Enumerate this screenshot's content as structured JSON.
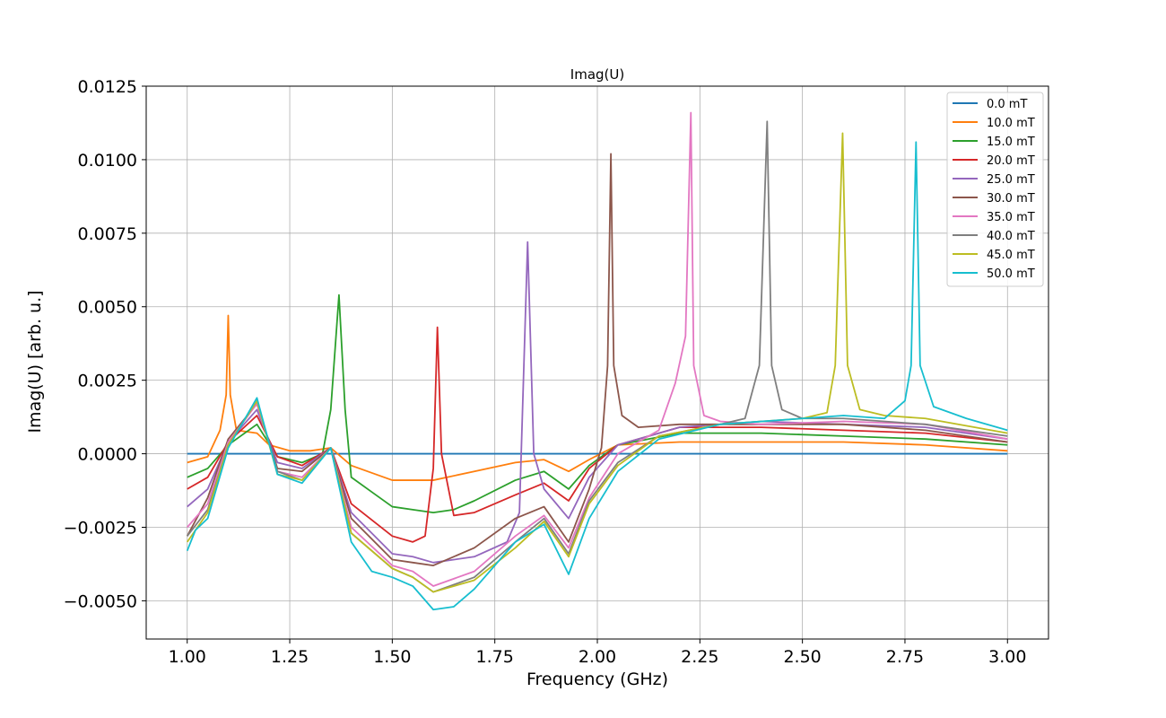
{
  "chart_data": {
    "type": "line",
    "title": "Imag(U)",
    "xlabel": "Frequency (GHz)",
    "ylabel": "Imag(U) [arb. u.]",
    "xlim": [
      0.9,
      3.1
    ],
    "ylim": [
      -0.0063,
      0.0125
    ],
    "xticks": [
      1.0,
      1.25,
      1.5,
      1.75,
      2.0,
      2.25,
      2.5,
      2.75,
      3.0
    ],
    "xtick_labels": [
      "1.00",
      "1.25",
      "1.50",
      "1.75",
      "2.00",
      "2.25",
      "2.50",
      "2.75",
      "3.00"
    ],
    "yticks": [
      -0.005,
      -0.0025,
      0.0,
      0.0025,
      0.005,
      0.0075,
      0.01,
      0.0125
    ],
    "ytick_labels": [
      "−0.0050",
      "−0.0025",
      "0.0000",
      "0.0025",
      "0.0050",
      "0.0075",
      "0.0100",
      "0.0125"
    ],
    "grid": true,
    "legend_position": "top-right",
    "series": [
      {
        "name": "0.0 mT",
        "color": "#1f77b4",
        "points": [
          [
            1.0,
            0.0
          ],
          [
            3.0,
            0.0
          ]
        ]
      },
      {
        "name": "10.0 mT",
        "color": "#ff7f0e",
        "points": [
          [
            1.0,
            -0.0003
          ],
          [
            1.05,
            -0.0001
          ],
          [
            1.08,
            0.0008
          ],
          [
            1.095,
            0.002
          ],
          [
            1.1,
            0.0047
          ],
          [
            1.105,
            0.002
          ],
          [
            1.12,
            0.0008
          ],
          [
            1.17,
            0.0007
          ],
          [
            1.2,
            0.0003
          ],
          [
            1.25,
            0.0001
          ],
          [
            1.3,
            0.0001
          ],
          [
            1.35,
            0.0002
          ],
          [
            1.4,
            -0.0004
          ],
          [
            1.5,
            -0.0009
          ],
          [
            1.55,
            -0.0009
          ],
          [
            1.6,
            -0.0009
          ],
          [
            1.7,
            -0.0006
          ],
          [
            1.8,
            -0.0003
          ],
          [
            1.87,
            -0.0002
          ],
          [
            1.93,
            -0.0006
          ],
          [
            1.98,
            -0.0002
          ],
          [
            2.05,
            0.0003
          ],
          [
            2.2,
            0.0004
          ],
          [
            2.4,
            0.0004
          ],
          [
            2.6,
            0.0004
          ],
          [
            2.8,
            0.0003
          ],
          [
            3.0,
            0.0001
          ]
        ]
      },
      {
        "name": "15.0 mT",
        "color": "#2ca02c",
        "points": [
          [
            1.0,
            -0.0008
          ],
          [
            1.05,
            -0.0005
          ],
          [
            1.1,
            0.0003
          ],
          [
            1.17,
            0.001
          ],
          [
            1.22,
            -0.0001
          ],
          [
            1.28,
            -0.0003
          ],
          [
            1.33,
            0.0
          ],
          [
            1.35,
            0.0015
          ],
          [
            1.37,
            0.0054
          ],
          [
            1.385,
            0.0015
          ],
          [
            1.4,
            -0.0008
          ],
          [
            1.45,
            -0.0013
          ],
          [
            1.5,
            -0.0018
          ],
          [
            1.55,
            -0.0019
          ],
          [
            1.6,
            -0.002
          ],
          [
            1.65,
            -0.0019
          ],
          [
            1.7,
            -0.0016
          ],
          [
            1.8,
            -0.0009
          ],
          [
            1.87,
            -0.0006
          ],
          [
            1.93,
            -0.0012
          ],
          [
            1.98,
            -0.0004
          ],
          [
            2.05,
            0.0003
          ],
          [
            2.2,
            0.0007
          ],
          [
            2.4,
            0.0007
          ],
          [
            2.6,
            0.0006
          ],
          [
            2.8,
            0.0005
          ],
          [
            3.0,
            0.0003
          ]
        ]
      },
      {
        "name": "20.0 mT",
        "color": "#d62728",
        "points": [
          [
            1.0,
            -0.0012
          ],
          [
            1.05,
            -0.0008
          ],
          [
            1.1,
            0.0004
          ],
          [
            1.17,
            0.0013
          ],
          [
            1.22,
            -0.0001
          ],
          [
            1.28,
            -0.0004
          ],
          [
            1.35,
            0.0002
          ],
          [
            1.4,
            -0.0017
          ],
          [
            1.5,
            -0.0028
          ],
          [
            1.55,
            -0.003
          ],
          [
            1.58,
            -0.0028
          ],
          [
            1.6,
            -0.0005
          ],
          [
            1.61,
            0.0043
          ],
          [
            1.62,
            0.0
          ],
          [
            1.65,
            -0.0021
          ],
          [
            1.7,
            -0.002
          ],
          [
            1.8,
            -0.0014
          ],
          [
            1.87,
            -0.001
          ],
          [
            1.93,
            -0.0016
          ],
          [
            1.98,
            -0.0005
          ],
          [
            2.05,
            0.0003
          ],
          [
            2.2,
            0.0009
          ],
          [
            2.4,
            0.0009
          ],
          [
            2.6,
            0.0008
          ],
          [
            2.8,
            0.0007
          ],
          [
            3.0,
            0.0004
          ]
        ]
      },
      {
        "name": "25.0 mT",
        "color": "#9467bd",
        "points": [
          [
            1.0,
            -0.0018
          ],
          [
            1.05,
            -0.0012
          ],
          [
            1.1,
            0.0004
          ],
          [
            1.17,
            0.0015
          ],
          [
            1.22,
            -0.0003
          ],
          [
            1.28,
            -0.0005
          ],
          [
            1.35,
            0.0002
          ],
          [
            1.4,
            -0.002
          ],
          [
            1.5,
            -0.0034
          ],
          [
            1.55,
            -0.0035
          ],
          [
            1.6,
            -0.0037
          ],
          [
            1.7,
            -0.0035
          ],
          [
            1.78,
            -0.003
          ],
          [
            1.81,
            -0.002
          ],
          [
            1.83,
            0.0072
          ],
          [
            1.845,
            0.0
          ],
          [
            1.87,
            -0.0012
          ],
          [
            1.93,
            -0.0022
          ],
          [
            1.98,
            -0.0008
          ],
          [
            2.05,
            0.0003
          ],
          [
            2.2,
            0.0009
          ],
          [
            2.4,
            0.0011
          ],
          [
            2.6,
            0.001
          ],
          [
            2.8,
            0.0009
          ],
          [
            3.0,
            0.0005
          ]
        ]
      },
      {
        "name": "30.0 mT",
        "color": "#8c564b",
        "points": [
          [
            1.0,
            -0.0028
          ],
          [
            1.05,
            -0.0015
          ],
          [
            1.1,
            0.0005
          ],
          [
            1.17,
            0.0017
          ],
          [
            1.22,
            -0.0005
          ],
          [
            1.28,
            -0.0006
          ],
          [
            1.35,
            0.0002
          ],
          [
            1.4,
            -0.0022
          ],
          [
            1.5,
            -0.0036
          ],
          [
            1.55,
            -0.0037
          ],
          [
            1.6,
            -0.0038
          ],
          [
            1.7,
            -0.0032
          ],
          [
            1.8,
            -0.0022
          ],
          [
            1.87,
            -0.0018
          ],
          [
            1.93,
            -0.003
          ],
          [
            1.98,
            -0.0012
          ],
          [
            2.01,
            0.0002
          ],
          [
            2.025,
            0.003
          ],
          [
            2.033,
            0.0102
          ],
          [
            2.04,
            0.003
          ],
          [
            2.06,
            0.0013
          ],
          [
            2.1,
            0.0009
          ],
          [
            2.2,
            0.001
          ],
          [
            2.4,
            0.001
          ],
          [
            2.6,
            0.001
          ],
          [
            2.8,
            0.0008
          ],
          [
            3.0,
            0.0004
          ]
        ]
      },
      {
        "name": "35.0 mT",
        "color": "#e377c2",
        "points": [
          [
            1.0,
            -0.0025
          ],
          [
            1.05,
            -0.0017
          ],
          [
            1.1,
            0.0004
          ],
          [
            1.17,
            0.0017
          ],
          [
            1.22,
            -0.0006
          ],
          [
            1.28,
            -0.0008
          ],
          [
            1.35,
            0.0002
          ],
          [
            1.4,
            -0.0025
          ],
          [
            1.5,
            -0.0038
          ],
          [
            1.55,
            -0.004
          ],
          [
            1.6,
            -0.0045
          ],
          [
            1.7,
            -0.004
          ],
          [
            1.8,
            -0.0028
          ],
          [
            1.87,
            -0.0021
          ],
          [
            1.93,
            -0.0032
          ],
          [
            1.98,
            -0.0015
          ],
          [
            2.05,
            0.0
          ],
          [
            2.15,
            0.0008
          ],
          [
            2.19,
            0.0024
          ],
          [
            2.215,
            0.004
          ],
          [
            2.228,
            0.0116
          ],
          [
            2.235,
            0.003
          ],
          [
            2.26,
            0.0013
          ],
          [
            2.3,
            0.0011
          ],
          [
            2.4,
            0.001
          ],
          [
            2.6,
            0.0011
          ],
          [
            2.8,
            0.001
          ],
          [
            3.0,
            0.0005
          ]
        ]
      },
      {
        "name": "40.0 mT",
        "color": "#7f7f7f",
        "points": [
          [
            1.0,
            -0.0028
          ],
          [
            1.05,
            -0.0019
          ],
          [
            1.1,
            0.0003
          ],
          [
            1.17,
            0.0018
          ],
          [
            1.22,
            -0.0006
          ],
          [
            1.28,
            -0.0009
          ],
          [
            1.35,
            0.0002
          ],
          [
            1.4,
            -0.0027
          ],
          [
            1.5,
            -0.0039
          ],
          [
            1.55,
            -0.0042
          ],
          [
            1.6,
            -0.0047
          ],
          [
            1.7,
            -0.0042
          ],
          [
            1.8,
            -0.003
          ],
          [
            1.87,
            -0.0022
          ],
          [
            1.93,
            -0.0034
          ],
          [
            1.98,
            -0.0016
          ],
          [
            2.05,
            -0.0003
          ],
          [
            2.15,
            0.0006
          ],
          [
            2.3,
            0.001
          ],
          [
            2.36,
            0.0012
          ],
          [
            2.395,
            0.003
          ],
          [
            2.414,
            0.0113
          ],
          [
            2.425,
            0.003
          ],
          [
            2.45,
            0.0015
          ],
          [
            2.5,
            0.0012
          ],
          [
            2.6,
            0.0012
          ],
          [
            2.8,
            0.001
          ],
          [
            3.0,
            0.0006
          ]
        ]
      },
      {
        "name": "45.0 mT",
        "color": "#bcbd22",
        "points": [
          [
            1.0,
            -0.003
          ],
          [
            1.05,
            -0.002
          ],
          [
            1.1,
            0.0003
          ],
          [
            1.17,
            0.0018
          ],
          [
            1.22,
            -0.0007
          ],
          [
            1.28,
            -0.0009
          ],
          [
            1.35,
            0.0002
          ],
          [
            1.4,
            -0.0027
          ],
          [
            1.5,
            -0.0039
          ],
          [
            1.55,
            -0.0042
          ],
          [
            1.6,
            -0.0047
          ],
          [
            1.7,
            -0.0043
          ],
          [
            1.8,
            -0.0032
          ],
          [
            1.87,
            -0.0023
          ],
          [
            1.93,
            -0.0035
          ],
          [
            1.98,
            -0.0017
          ],
          [
            2.05,
            -0.0004
          ],
          [
            2.15,
            0.0006
          ],
          [
            2.3,
            0.001
          ],
          [
            2.5,
            0.0012
          ],
          [
            2.56,
            0.0014
          ],
          [
            2.58,
            0.003
          ],
          [
            2.598,
            0.0109
          ],
          [
            2.61,
            0.003
          ],
          [
            2.64,
            0.0015
          ],
          [
            2.7,
            0.0013
          ],
          [
            2.8,
            0.0012
          ],
          [
            3.0,
            0.0007
          ]
        ]
      },
      {
        "name": "50.0 mT",
        "color": "#17becf",
        "points": [
          [
            1.0,
            -0.0033
          ],
          [
            1.02,
            -0.0026
          ],
          [
            1.05,
            -0.0022
          ],
          [
            1.1,
            0.0002
          ],
          [
            1.17,
            0.0019
          ],
          [
            1.22,
            -0.0007
          ],
          [
            1.28,
            -0.001
          ],
          [
            1.35,
            0.0002
          ],
          [
            1.4,
            -0.003
          ],
          [
            1.45,
            -0.004
          ],
          [
            1.5,
            -0.0042
          ],
          [
            1.55,
            -0.0045
          ],
          [
            1.6,
            -0.0053
          ],
          [
            1.65,
            -0.0052
          ],
          [
            1.7,
            -0.0046
          ],
          [
            1.8,
            -0.003
          ],
          [
            1.87,
            -0.0024
          ],
          [
            1.93,
            -0.0041
          ],
          [
            1.98,
            -0.0022
          ],
          [
            2.05,
            -0.0006
          ],
          [
            2.15,
            0.0005
          ],
          [
            2.3,
            0.001
          ],
          [
            2.5,
            0.0012
          ],
          [
            2.6,
            0.0013
          ],
          [
            2.7,
            0.0012
          ],
          [
            2.75,
            0.0018
          ],
          [
            2.765,
            0.003
          ],
          [
            2.777,
            0.0106
          ],
          [
            2.787,
            0.003
          ],
          [
            2.82,
            0.0016
          ],
          [
            2.9,
            0.0012
          ],
          [
            3.0,
            0.0008
          ]
        ]
      }
    ]
  }
}
